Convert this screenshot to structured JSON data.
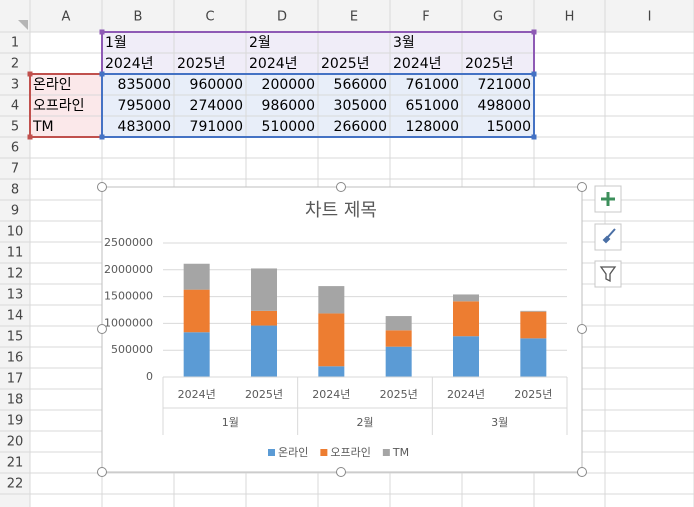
{
  "spreadsheet": {
    "columns": [
      "A",
      "B",
      "C",
      "D",
      "E",
      "F",
      "G",
      "H",
      "I"
    ],
    "row_numbers": [
      1,
      2,
      3,
      4,
      5,
      6,
      7,
      8,
      9,
      10,
      11,
      12,
      13,
      14,
      15,
      16,
      17,
      18,
      19,
      20,
      21,
      22
    ]
  },
  "chart_data": {
    "type": "bar",
    "stacked": true,
    "title": "차트 제목",
    "categories": [
      "2024년",
      "2025년",
      "2024년",
      "2025년",
      "2024년",
      "2025년"
    ],
    "groups": [
      "1월",
      "2월",
      "3월"
    ],
    "series": [
      {
        "name": "온라인",
        "color": "#5b9bd5",
        "values": [
          835000,
          960000,
          200000,
          566000,
          761000,
          721000
        ]
      },
      {
        "name": "오프라인",
        "color": "#ed7d31",
        "values": [
          795000,
          274000,
          986000,
          305000,
          651000,
          498000
        ]
      },
      {
        "name": "TM",
        "color": "#a5a5a5",
        "values": [
          483000,
          791000,
          510000,
          266000,
          128000,
          15000
        ]
      }
    ],
    "ylim": [
      0,
      2500000
    ],
    "yticks": [
      0,
      500000,
      1000000,
      1500000,
      2000000,
      2500000
    ],
    "grid": true,
    "legend": "bottom"
  }
}
